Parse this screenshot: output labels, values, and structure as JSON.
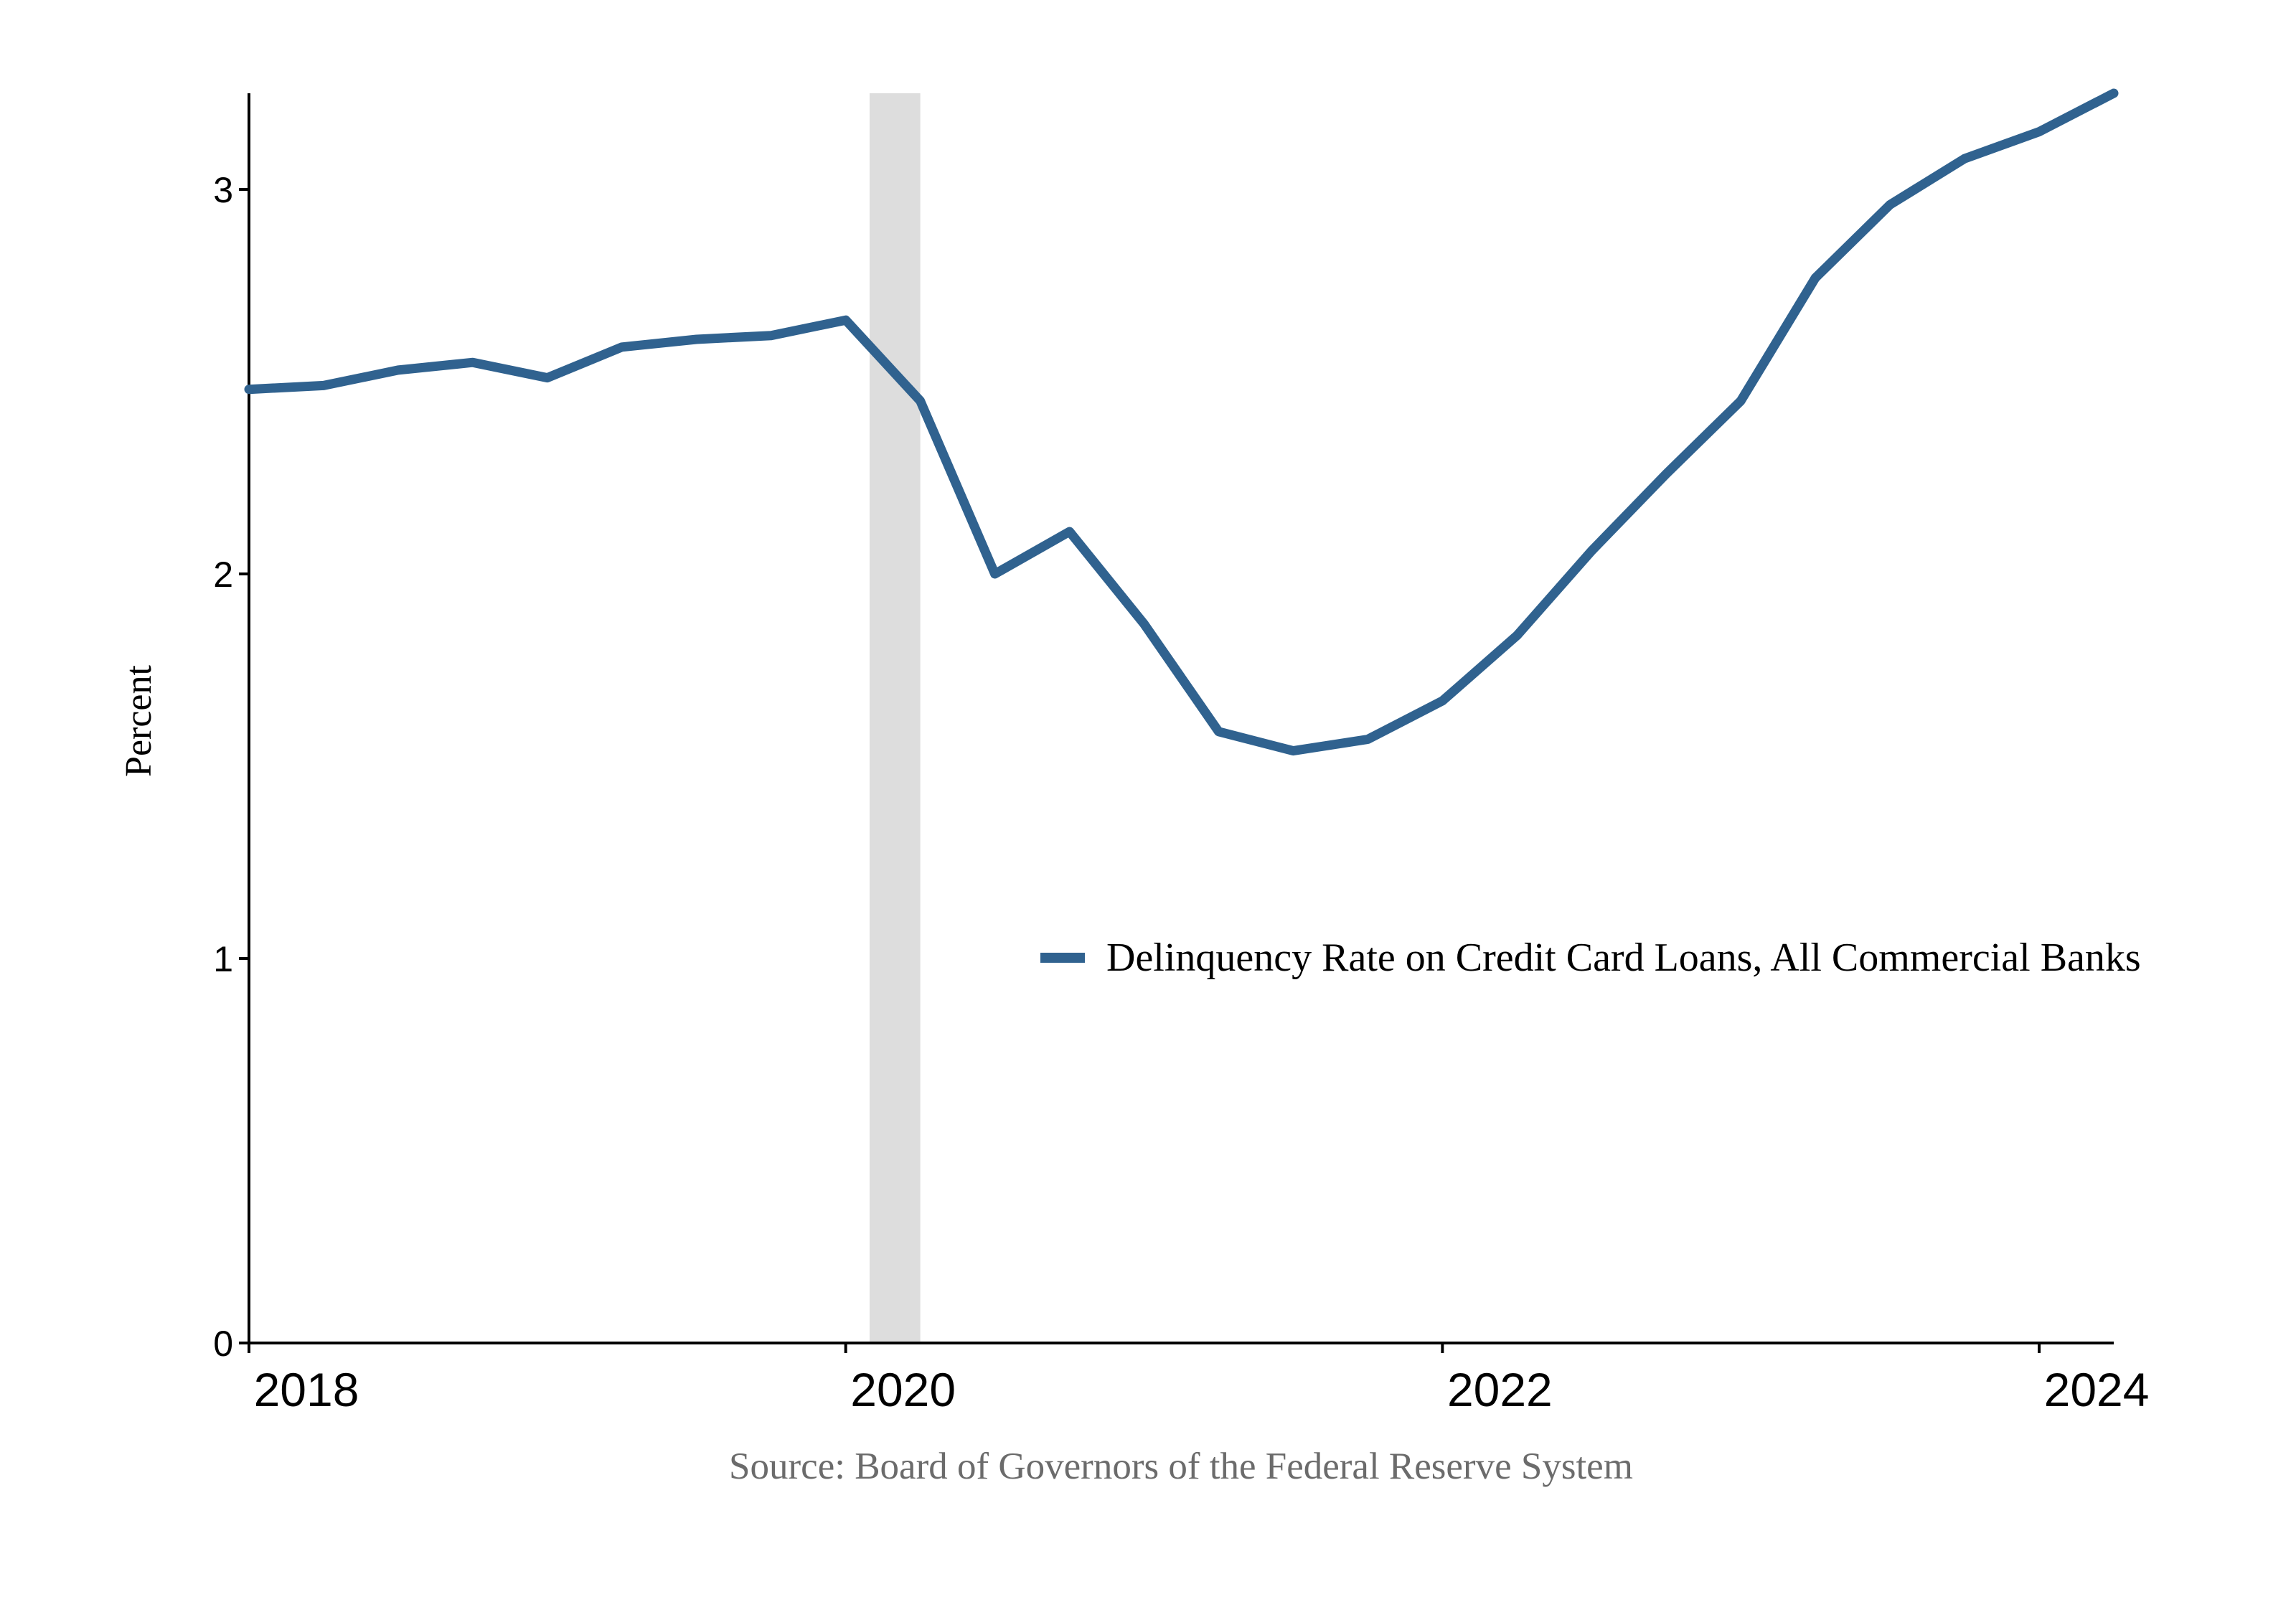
{
  "chart_data": {
    "type": "line",
    "title": "",
    "xlabel": "",
    "ylabel": "Percent",
    "source": "Source: Board of Governors of the Federal Reserve System",
    "xlim": [
      2018.0,
      2024.25
    ],
    "ylim": [
      0,
      3.25
    ],
    "x_ticks": [
      {
        "value": 2018,
        "label": "2018"
      },
      {
        "value": 2020,
        "label": "2020"
      },
      {
        "value": 2022,
        "label": "2022"
      },
      {
        "value": 2024,
        "label": "2024"
      }
    ],
    "y_ticks": [
      {
        "value": 0,
        "label": "0"
      },
      {
        "value": 1,
        "label": "1"
      },
      {
        "value": 2,
        "label": "2"
      },
      {
        "value": 3,
        "label": "3"
      }
    ],
    "recession_shading": {
      "start": 2020.08,
      "end": 2020.25,
      "color": "#dddddd"
    },
    "grid": false,
    "legend_position": "right-center",
    "series": [
      {
        "name": "Delinquency Rate on Credit Card Loans, All Commercial Banks",
        "color": "#30628f",
        "x": [
          2018.0,
          2018.25,
          2018.5,
          2018.75,
          2019.0,
          2019.25,
          2019.5,
          2019.75,
          2020.0,
          2020.25,
          2020.5,
          2020.75,
          2021.0,
          2021.25,
          2021.5,
          2021.75,
          2022.0,
          2022.25,
          2022.5,
          2022.75,
          2023.0,
          2023.25,
          2023.5,
          2023.75,
          2024.0,
          2024.25
        ],
        "values": [
          2.48,
          2.49,
          2.53,
          2.55,
          2.51,
          2.59,
          2.61,
          2.62,
          2.66,
          2.45,
          2.0,
          2.11,
          1.87,
          1.59,
          1.54,
          1.57,
          1.67,
          1.84,
          2.06,
          2.26,
          2.45,
          2.77,
          2.96,
          3.08,
          3.15,
          3.25
        ]
      }
    ]
  }
}
